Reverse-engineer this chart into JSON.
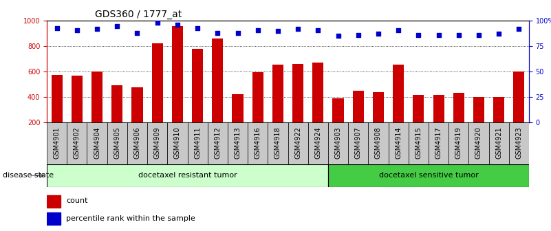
{
  "title": "GDS360 / 1777_at",
  "categories": [
    "GSM4901",
    "GSM4902",
    "GSM4904",
    "GSM4905",
    "GSM4906",
    "GSM4909",
    "GSM4910",
    "GSM4911",
    "GSM4912",
    "GSM4913",
    "GSM4916",
    "GSM4918",
    "GSM4922",
    "GSM4924",
    "GSM4903",
    "GSM4907",
    "GSM4908",
    "GSM4914",
    "GSM4915",
    "GSM4917",
    "GSM4919",
    "GSM4920",
    "GSM4921",
    "GSM4923"
  ],
  "bar_values": [
    575,
    570,
    600,
    490,
    475,
    825,
    960,
    780,
    860,
    425,
    595,
    655,
    660,
    670,
    390,
    450,
    440,
    655,
    415,
    415,
    435,
    400,
    400,
    600
  ],
  "dot_values": [
    93,
    91,
    92,
    95,
    88,
    98,
    96,
    93,
    88,
    88,
    91,
    90,
    92,
    91,
    85,
    86,
    87,
    91,
    86,
    86,
    86,
    86,
    87,
    92
  ],
  "bar_color": "#cc0000",
  "dot_color": "#0000cc",
  "ylim_left": [
    200,
    1000
  ],
  "ylim_right": [
    0,
    100
  ],
  "yticks_left": [
    200,
    400,
    600,
    800,
    1000
  ],
  "yticks_right": [
    0,
    25,
    50,
    75,
    100
  ],
  "ytick_labels_right": [
    "0",
    "25",
    "50",
    "75",
    "100%"
  ],
  "grid_values": [
    400,
    600,
    800
  ],
  "resistant_label": "docetaxel resistant tumor",
  "sensitive_label": "docetaxel sensitive tumor",
  "disease_state_label": "disease state",
  "legend_bar": "count",
  "legend_dot": "percentile rank within the sample",
  "n_resistant": 14,
  "n_sensitive": 10,
  "bg_color_resistant": "#ccffcc",
  "bg_color_sensitive": "#44cc44",
  "title_fontsize": 10,
  "tick_fontsize": 7,
  "label_fontsize": 8,
  "xtick_bg": "#c8c8c8"
}
